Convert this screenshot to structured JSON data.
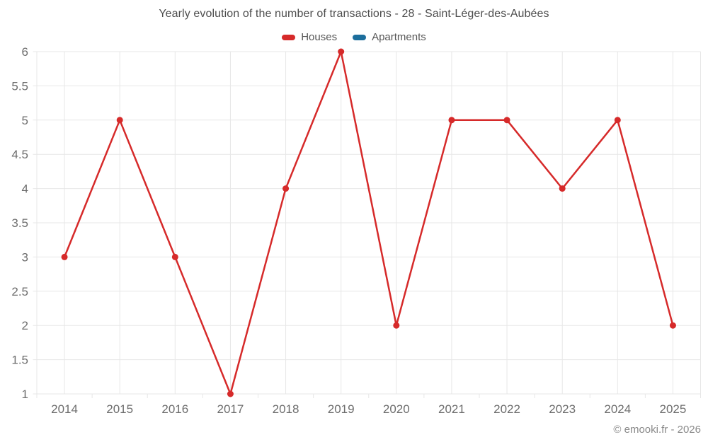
{
  "page": {
    "title": "Yearly evolution of the number of transactions - 28 - Saint-Léger-des-Aubées",
    "copyright": "© emooki.fr - 2026"
  },
  "legend": {
    "items": [
      {
        "label": "Houses",
        "color": "#d62a2a"
      },
      {
        "label": "Apartments",
        "color": "#1c6e9c"
      }
    ]
  },
  "chart_data": {
    "type": "line",
    "title": "Yearly evolution of the number of transactions - 28 - Saint-Léger-des-Aubées",
    "categories": [
      "2014",
      "2015",
      "2016",
      "2017",
      "2018",
      "2019",
      "2020",
      "2021",
      "2022",
      "2023",
      "2024",
      "2025"
    ],
    "series": [
      {
        "name": "Houses",
        "color": "#d62a2a",
        "values": [
          3,
          5,
          3,
          1,
          4,
          6,
          2,
          5,
          5,
          4,
          5,
          2
        ]
      },
      {
        "name": "Apartments",
        "color": "#1c6e9c",
        "values": []
      }
    ],
    "ylim": [
      1,
      6
    ],
    "ytick_step": 0.5,
    "yticklabels": [
      "1",
      "1.5",
      "2",
      "2.5",
      "3",
      "3.5",
      "4",
      "4.5",
      "5",
      "5.5",
      "6"
    ],
    "xlabel": "",
    "ylabel": "",
    "grid": true,
    "legend_position": "top",
    "marker": "circle",
    "grid_color": "#e7e7e7",
    "axis_label_color": "#6d6d6d"
  }
}
